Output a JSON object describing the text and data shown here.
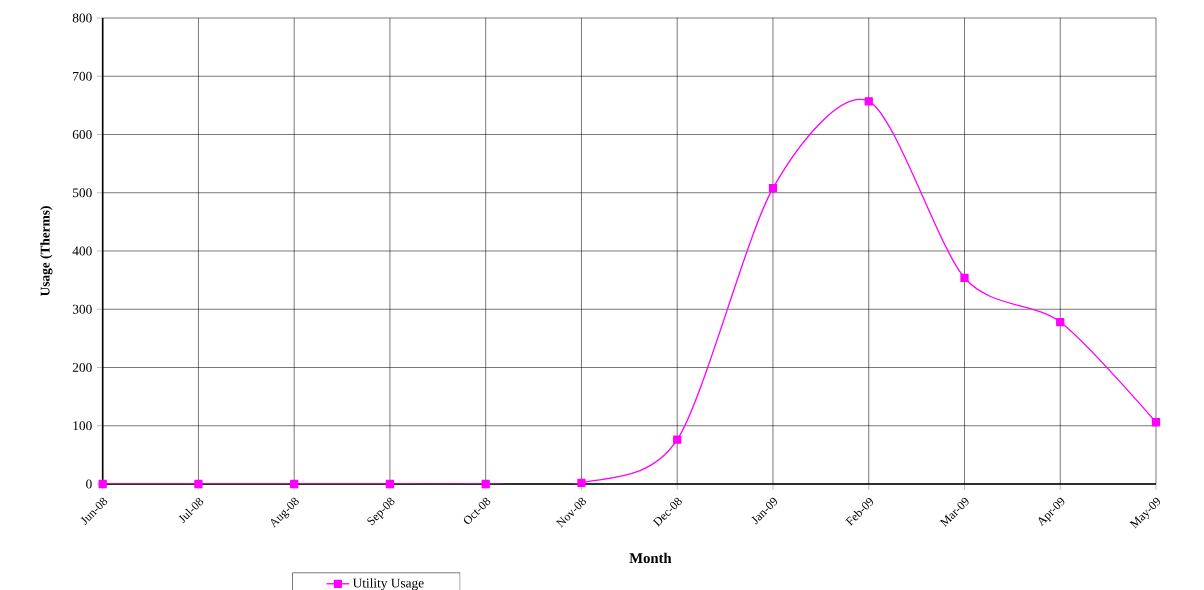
{
  "chart_data": {
    "type": "line",
    "xlabel": "Month",
    "ylabel": "Usage  (Therms)",
    "categories": [
      "Jun-08",
      "Jul-08",
      "Aug-08",
      "Sep-08",
      "Oct-08",
      "Nov-08",
      "Dec-08",
      "Jan-09",
      "Feb-09",
      "Mar-09",
      "Apr-09",
      "May-09"
    ],
    "series": [
      {
        "name": "Utility Usage",
        "color": "#ff00ff",
        "values": [
          0,
          0,
          0,
          0,
          0,
          2,
          76,
          508,
          657,
          354,
          278,
          106
        ]
      }
    ],
    "ylim": [
      0,
      800
    ],
    "yticks": [
      0,
      100,
      200,
      300,
      400,
      500,
      600,
      700,
      800
    ],
    "grid": true,
    "legend": "bottom",
    "marker": "square",
    "line_style": "solid"
  }
}
